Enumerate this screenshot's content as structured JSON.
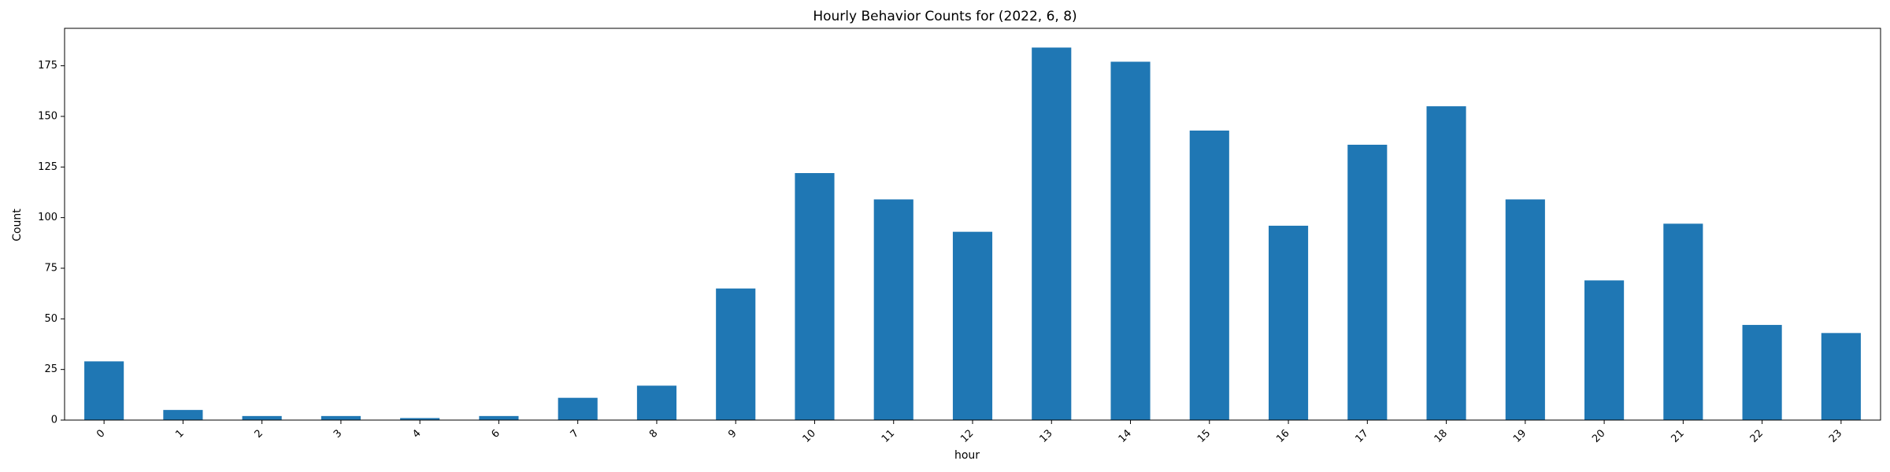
{
  "chart_data": {
    "type": "bar",
    "title": "Hourly Behavior Counts for (2022, 6, 8)",
    "xlabel": "hour",
    "ylabel": "Count",
    "categories": [
      "0",
      "1",
      "2",
      "3",
      "4",
      "6",
      "7",
      "8",
      "9",
      "10",
      "11",
      "12",
      "13",
      "14",
      "15",
      "16",
      "17",
      "18",
      "19",
      "20",
      "21",
      "22",
      "23"
    ],
    "values": [
      29,
      5,
      2,
      2,
      1,
      2,
      11,
      17,
      65,
      122,
      109,
      93,
      184,
      177,
      143,
      96,
      136,
      155,
      109,
      69,
      97,
      47,
      43
    ],
    "ylim": [
      0,
      193.5
    ],
    "yticks": [
      0,
      25,
      50,
      75,
      100,
      125,
      150,
      175
    ],
    "grid": false,
    "legend": "none",
    "bar_color": "#1f77b4"
  }
}
